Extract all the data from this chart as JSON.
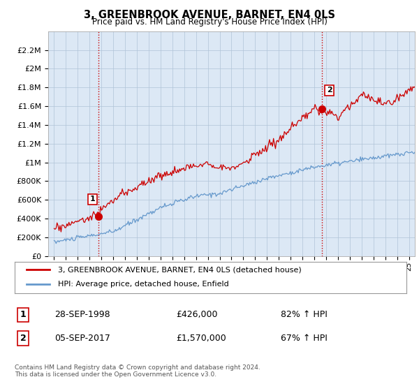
{
  "title": "3, GREENBROOK AVENUE, BARNET, EN4 0LS",
  "subtitle": "Price paid vs. HM Land Registry's House Price Index (HPI)",
  "ylim": [
    0,
    2400000
  ],
  "yticks": [
    0,
    200000,
    400000,
    600000,
    800000,
    1000000,
    1200000,
    1400000,
    1600000,
    1800000,
    2000000,
    2200000
  ],
  "xlim_start": 1994.5,
  "xlim_end": 2025.5,
  "line1_color": "#cc0000",
  "line2_color": "#6699cc",
  "chart_bg": "#dce8f5",
  "vline_color": "#cc0000",
  "sale1_year": 1998.74,
  "sale1_price": 426000,
  "sale2_year": 2017.67,
  "sale2_price": 1570000,
  "legend_line1": "3, GREENBROOK AVENUE, BARNET, EN4 0LS (detached house)",
  "legend_line2": "HPI: Average price, detached house, Enfield",
  "table_row1_num": "1",
  "table_row1_date": "28-SEP-1998",
  "table_row1_price": "£426,000",
  "table_row1_hpi": "82% ↑ HPI",
  "table_row2_num": "2",
  "table_row2_date": "05-SEP-2017",
  "table_row2_price": "£1,570,000",
  "table_row2_hpi": "67% ↑ HPI",
  "footer": "Contains HM Land Registry data © Crown copyright and database right 2024.\nThis data is licensed under the Open Government Licence v3.0.",
  "background_color": "#ffffff",
  "grid_color": "#b0c4d8"
}
